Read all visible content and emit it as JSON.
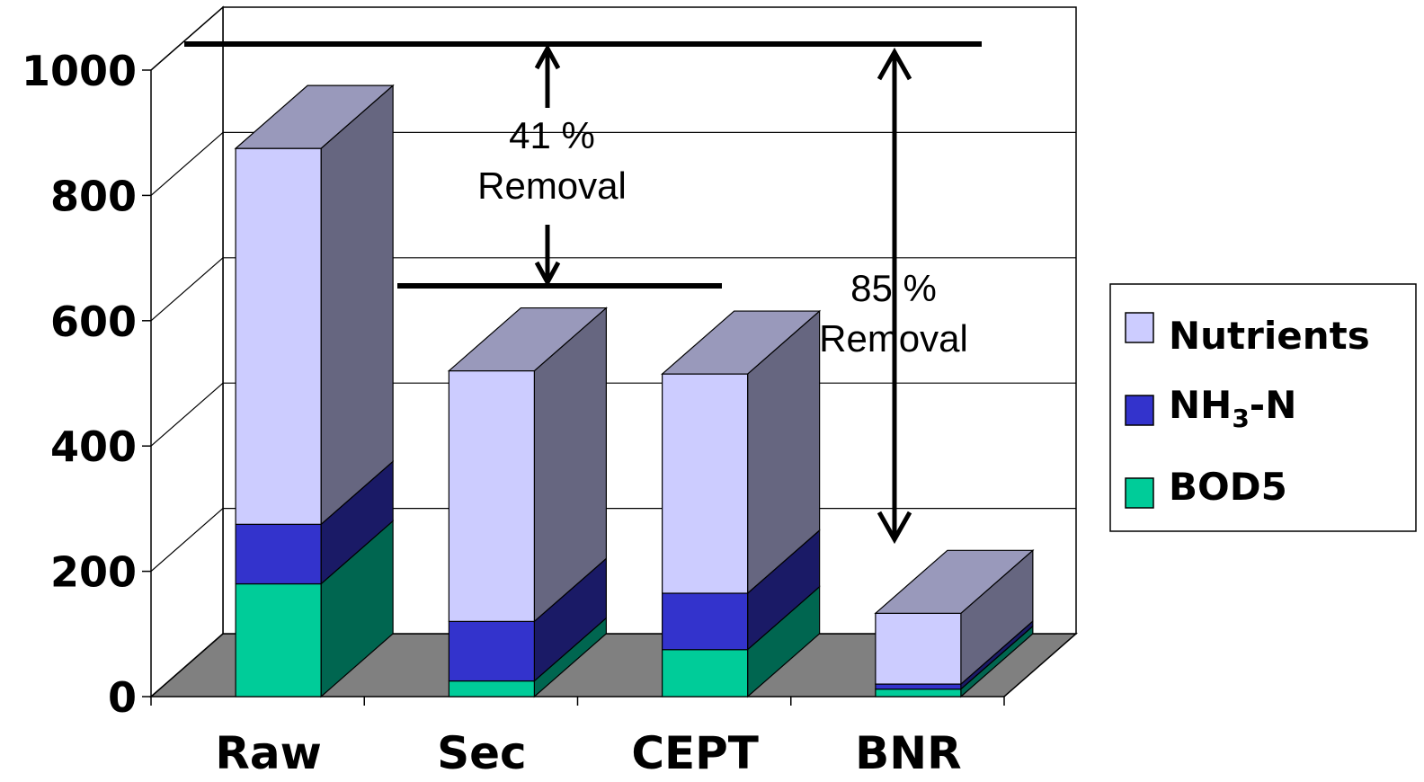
{
  "chart_data": {
    "type": "bar",
    "stacked": true,
    "three_d": true,
    "categories": [
      "Raw",
      "Sec",
      "CEPT",
      "BNR"
    ],
    "series": [
      {
        "name": "BOD5",
        "values": [
          180,
          25,
          75,
          12
        ],
        "color": "#00CC99",
        "side_color": "#006650"
      },
      {
        "name": "NH",
        "sub": "3",
        "suffix": "-N",
        "values": [
          95,
          95,
          90,
          8
        ],
        "color": "#3333CC",
        "side_color": "#1A1A66"
      },
      {
        "name": "Nutrients",
        "values": [
          600,
          400,
          350,
          113
        ],
        "color": "#CCCCFF",
        "side_color": "#666680",
        "top_color": "#9999BB"
      }
    ],
    "ylim": [
      0,
      1000
    ],
    "yticks": [
      "0",
      "200",
      "400",
      "600",
      "800",
      "1000"
    ],
    "legend": "right",
    "grid": true,
    "annotations": [
      {
        "lines": [
          "41 %",
          "Removal"
        ]
      },
      {
        "lines": [
          "85 %",
          "Removal"
        ]
      }
    ]
  }
}
